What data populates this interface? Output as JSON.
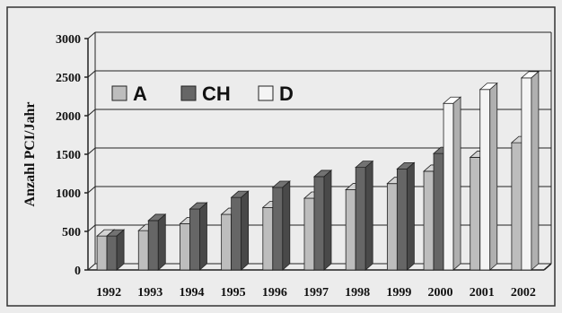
{
  "chart_data": {
    "type": "bar",
    "title": "",
    "xlabel": "",
    "ylabel": "Anzahl PCI/Jahr",
    "ylim": [
      0,
      3000
    ],
    "yticks": [
      0,
      500,
      1000,
      1500,
      2000,
      2500,
      3000
    ],
    "categories": [
      "1992",
      "1993",
      "1994",
      "1995",
      "1996",
      "1997",
      "1998",
      "1999",
      "2000",
      "2001",
      "2002"
    ],
    "series": [
      {
        "name": "A",
        "color": "#bdbdbd",
        "values": [
          440,
          510,
          600,
          720,
          810,
          930,
          1040,
          1120,
          1280,
          1460,
          1650
        ]
      },
      {
        "name": "CH",
        "color": "#666666",
        "values": [
          440,
          640,
          790,
          940,
          1070,
          1210,
          1330,
          1310,
          1510,
          null,
          null
        ]
      },
      {
        "name": "D",
        "color": "#f4f4f4",
        "values": [
          null,
          null,
          null,
          null,
          null,
          null,
          null,
          null,
          2160,
          2340,
          2490
        ]
      }
    ],
    "grid": true,
    "legend": "top-left",
    "bar_style": "3d"
  }
}
